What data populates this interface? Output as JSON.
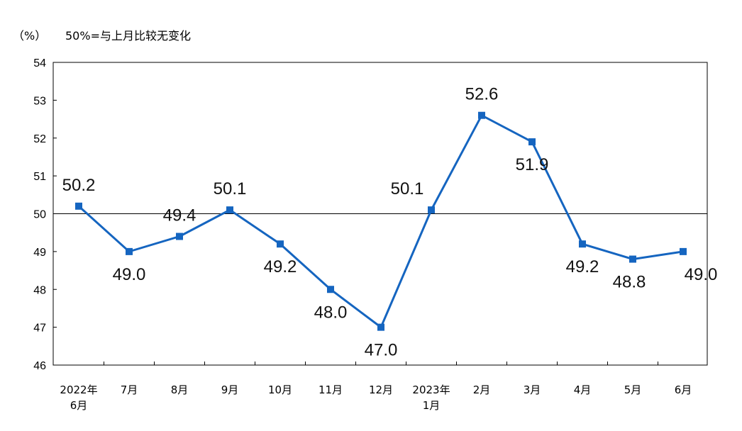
{
  "unit_label": "（%）",
  "note": "50%=与上月比较无变化",
  "chart_data": {
    "type": "line",
    "categories": [
      [
        "2022年",
        "6月"
      ],
      [
        "7月"
      ],
      [
        "8月"
      ],
      [
        "9月"
      ],
      [
        "10月"
      ],
      [
        "11月"
      ],
      [
        "12月"
      ],
      [
        "2023年",
        "1月"
      ],
      [
        "2月"
      ],
      [
        "3月"
      ],
      [
        "4月"
      ],
      [
        "5月"
      ],
      [
        "6月"
      ]
    ],
    "series": [
      {
        "values": [
          50.2,
          49.0,
          49.4,
          50.1,
          49.2,
          48.0,
          47.0,
          50.1,
          52.6,
          51.9,
          49.2,
          48.8,
          49.0
        ],
        "labels": [
          "50.2",
          "49.0",
          "49.4",
          "50.1",
          "49.2",
          "48.0",
          "47.0",
          "50.1",
          "52.6",
          "51.9",
          "49.2",
          "48.8",
          "49.0"
        ],
        "color": "#1565C0"
      }
    ],
    "yticks": [
      "46",
      "47",
      "48",
      "49",
      "50",
      "51",
      "52",
      "53",
      "54"
    ],
    "ylim": [
      46,
      54
    ],
    "reference_line": 50,
    "title": "",
    "xlabel": "",
    "ylabel": "",
    "legend": "none",
    "grid": false
  }
}
